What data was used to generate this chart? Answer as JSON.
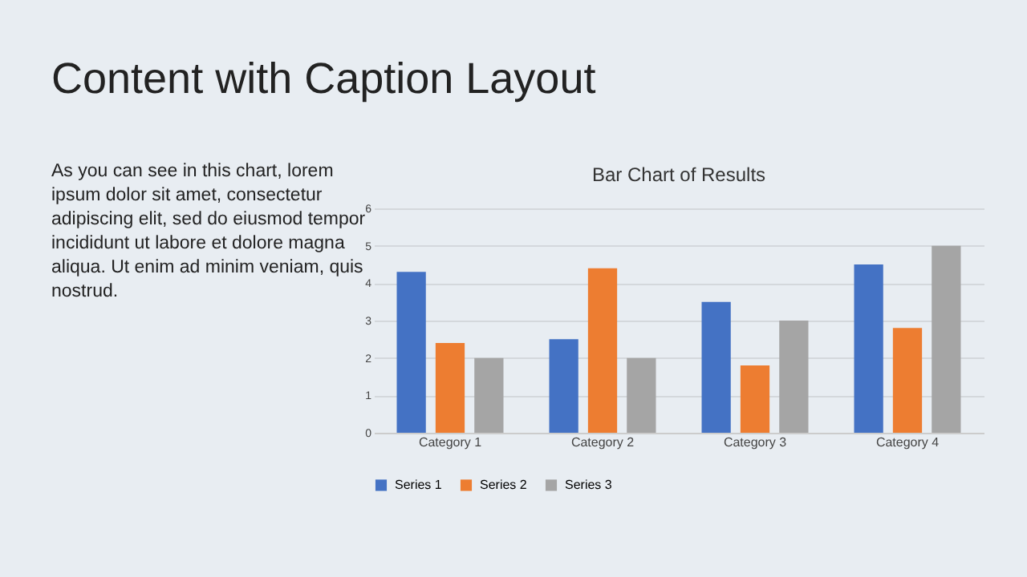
{
  "chart_data": {
    "type": "bar",
    "title": "Content with Caption Layout",
    "subtitle": "Bar Chart of Results",
    "annotations": [
      "As you can see in this chart, lorem ipsum dolor sit amet, consectetur adipiscing elit, sed do eiusmod tempor incididunt ut labore et dolore magna aliqua. Ut enim ad minim veniam, quis nostrud."
    ],
    "categories": [
      "Category 1",
      "Category 2",
      "Category 3",
      "Category 4"
    ],
    "series": [
      {
        "name": "Series 1",
        "color": "#4472c4",
        "values": [
          4.3,
          2.5,
          3.5,
          4.5
        ]
      },
      {
        "name": "Series 2",
        "color": "#ed7d31",
        "values": [
          2.4,
          4.4,
          1.8,
          2.8
        ]
      },
      {
        "name": "Series 3",
        "color": "#a5a5a5",
        "values": [
          2,
          2,
          3,
          5
        ]
      }
    ],
    "ylim": [
      0,
      6
    ],
    "yticks": [
      0,
      1,
      2,
      3,
      4,
      5,
      6
    ],
    "grid": "y",
    "legend": "bottom"
  }
}
